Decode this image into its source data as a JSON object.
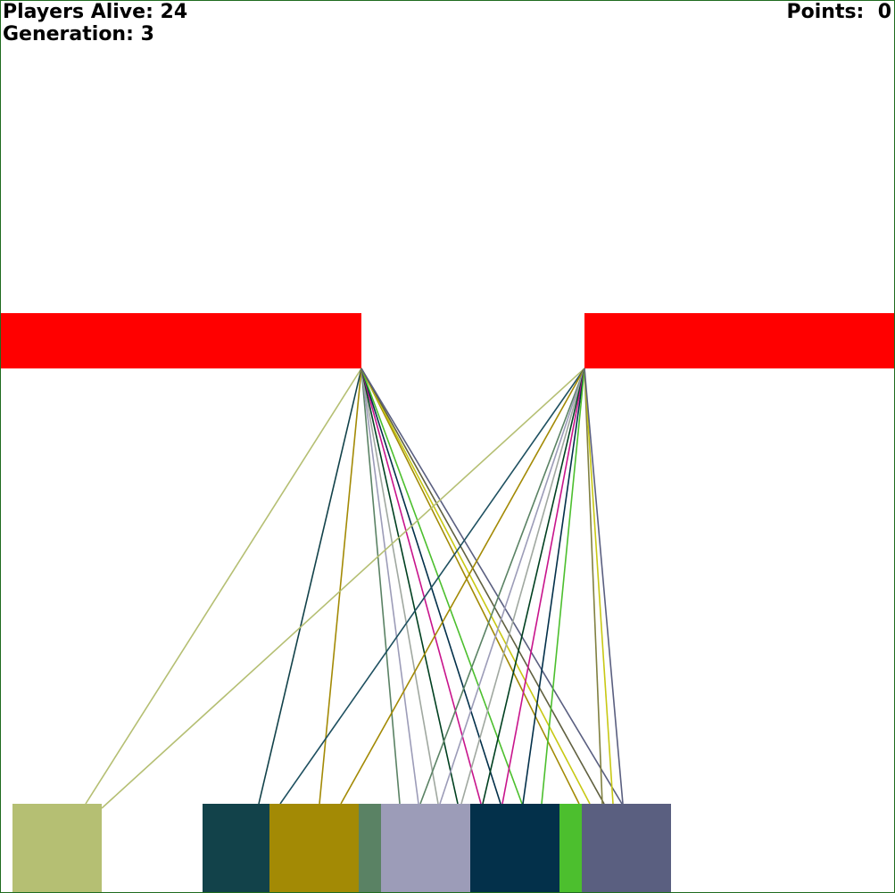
{
  "hud": {
    "players_label": "Players Alive:",
    "players_alive": "24",
    "generation_label": "Generation:",
    "generation": "3",
    "points_label": "Points:",
    "points": "0"
  },
  "colors": {
    "background": "#ffffff",
    "border": "#1f6b1f",
    "pipe": "#ff0000",
    "text": "#000000"
  },
  "pipes": [
    {
      "name": "left-pipe",
      "color": "#ff0000"
    },
    {
      "name": "right-pipe",
      "color": "#ff0000"
    }
  ],
  "players": [
    {
      "name": "player-olive-light",
      "color": "#b5bf73"
    },
    {
      "name": "player-dark-teal",
      "color": "#12424a"
    },
    {
      "name": "player-mustard",
      "color": "#a38a05"
    },
    {
      "name": "player-sage",
      "color": "#5a8264"
    },
    {
      "name": "player-lavender",
      "color": "#9c9cb8"
    },
    {
      "name": "player-navy",
      "color": "#03304a"
    },
    {
      "name": "player-green",
      "color": "#4cbf2e"
    },
    {
      "name": "player-slate",
      "color": "#5a5f80"
    }
  ],
  "sight_line_colors": [
    "#b5bf73",
    "#12424a",
    "#a38a05",
    "#5a8264",
    "#9c9cb8",
    "#a0a8a0",
    "#1e5060",
    "#03304a",
    "#004020",
    "#c8148c",
    "#4cbf2e",
    "#5a5f80",
    "#808040",
    "#c8c814",
    "#606040"
  ]
}
